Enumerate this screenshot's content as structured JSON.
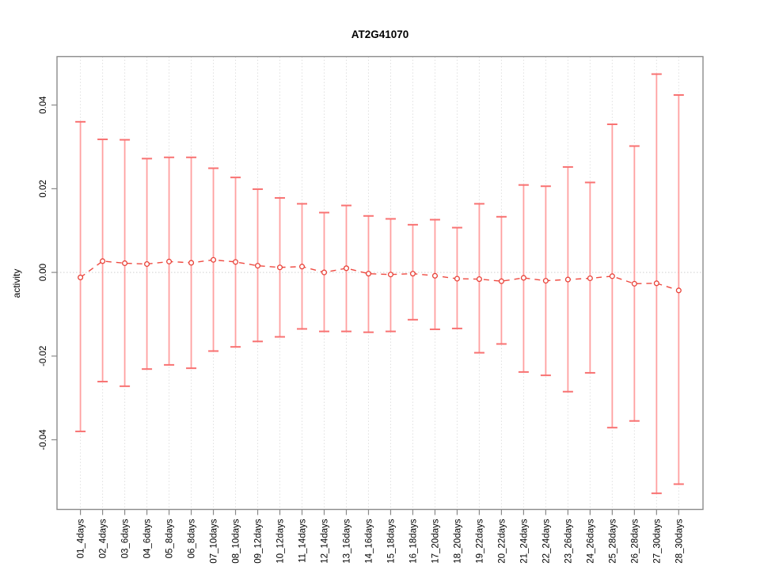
{
  "page": {
    "background_color": "#ffffff"
  },
  "chart_data": {
    "type": "line",
    "title": "AT2G41070",
    "xlabel": "",
    "ylabel": "activity",
    "legend": null,
    "point_style": "open-circle",
    "line_style": "dashed",
    "error_bars": true,
    "grid": {
      "vertical_dotted_per_category": true,
      "horizontal_dotted_zero_line": true
    },
    "ylim": [
      -0.0566,
      0.0516
    ],
    "y_ticks": [
      0.04,
      0.02,
      0.0,
      -0.02,
      -0.04
    ],
    "y_tick_labels": [
      "0.04",
      "0.02",
      "0.00",
      "-0.02",
      "-0.04"
    ],
    "categories": [
      "01_4days",
      "02_4days",
      "03_6days",
      "04_6days",
      "05_8days",
      "06_8days",
      "07_10days",
      "08_10days",
      "09_12days",
      "10_12days",
      "11_14days",
      "12_14days",
      "13_16days",
      "14_16days",
      "15_18days",
      "16_18days",
      "17_20days",
      "18_20days",
      "19_22days",
      "20_22days",
      "21_24days",
      "22_24days",
      "23_26days",
      "24_26days",
      "25_28days",
      "26_28days",
      "27_30days",
      "28_30days"
    ],
    "series": [
      {
        "name": "activity",
        "values": [
          -0.0012,
          0.0027,
          0.0022,
          0.002,
          0.0026,
          0.0023,
          0.003,
          0.0025,
          0.0016,
          0.0012,
          0.0014,
          0.0,
          0.001,
          -0.0003,
          -0.0005,
          -0.0003,
          -0.0008,
          -0.0015,
          -0.0016,
          -0.0021,
          -0.0013,
          -0.002,
          -0.0017,
          -0.0014,
          -0.0009,
          -0.0027,
          -0.0026,
          -0.0043
        ],
        "upper": [
          0.036,
          0.0318,
          0.0317,
          0.0272,
          0.0275,
          0.0275,
          0.0249,
          0.0227,
          0.0199,
          0.0178,
          0.0164,
          0.0143,
          0.016,
          0.0135,
          0.0128,
          0.0114,
          0.0126,
          0.0107,
          0.0164,
          0.0133,
          0.0209,
          0.0206,
          0.0252,
          0.0215,
          0.0354,
          0.0302,
          0.0474,
          0.0424
        ],
        "lower": [
          -0.038,
          -0.0261,
          -0.0272,
          -0.0231,
          -0.0221,
          -0.0229,
          -0.0188,
          -0.0178,
          -0.0165,
          -0.0154,
          -0.0135,
          -0.0141,
          -0.0141,
          -0.0143,
          -0.0141,
          -0.0113,
          -0.0136,
          -0.0134,
          -0.0192,
          -0.0171,
          -0.0238,
          -0.0246,
          -0.0285,
          -0.024,
          -0.0371,
          -0.0355,
          -0.0528,
          -0.0506
        ]
      }
    ]
  },
  "colors": {
    "error_bar": "#ffa0a0",
    "error_bar_cap": "#f87272",
    "data_line": "#ef4a41",
    "data_point_stroke": "#e8433a",
    "data_point_fill": "#ffffff",
    "gridline": "#e0e0e0",
    "zero_line": "#d0d0d0",
    "axis": "#8a8a8a",
    "text": "#000000"
  }
}
